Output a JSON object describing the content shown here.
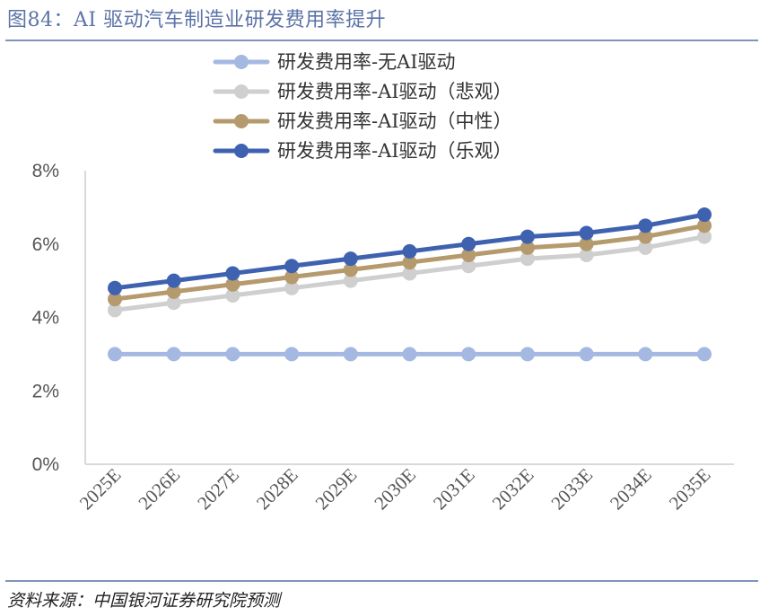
{
  "figure": {
    "title": "图84：AI 驱动汽车制造业研发费用率提升",
    "source": "资料来源：中国银河证券研究院预测"
  },
  "chart_data": {
    "type": "line",
    "title": "",
    "xlabel": "",
    "ylabel": "",
    "categories": [
      "2025E",
      "2026E",
      "2027E",
      "2028E",
      "2029E",
      "2030E",
      "2031E",
      "2032E",
      "2033E",
      "2034E",
      "2035E"
    ],
    "ylim": [
      0,
      8
    ],
    "yticks": [
      "0%",
      "2%",
      "4%",
      "6%",
      "8%"
    ],
    "grid": false,
    "legend_position": "top",
    "series": [
      {
        "name": "研发费用率-无AI驱动",
        "color": "#a5b8e2",
        "values": [
          3.0,
          3.0,
          3.0,
          3.0,
          3.0,
          3.0,
          3.0,
          3.0,
          3.0,
          3.0,
          3.0
        ]
      },
      {
        "name": "研发费用率-AI驱动（悲观）",
        "color": "#cfcfcf",
        "values": [
          4.2,
          4.4,
          4.6,
          4.8,
          5.0,
          5.2,
          5.4,
          5.6,
          5.7,
          5.9,
          6.2
        ]
      },
      {
        "name": "研发费用率-AI驱动（中性）",
        "color": "#b59a6e",
        "values": [
          4.5,
          4.7,
          4.9,
          5.1,
          5.3,
          5.5,
          5.7,
          5.9,
          6.0,
          6.2,
          6.5
        ]
      },
      {
        "name": "研发费用率-AI驱动（乐观）",
        "color": "#3f62b0",
        "values": [
          4.8,
          5.0,
          5.2,
          5.4,
          5.6,
          5.8,
          6.0,
          6.2,
          6.3,
          6.5,
          6.8
        ]
      }
    ]
  }
}
